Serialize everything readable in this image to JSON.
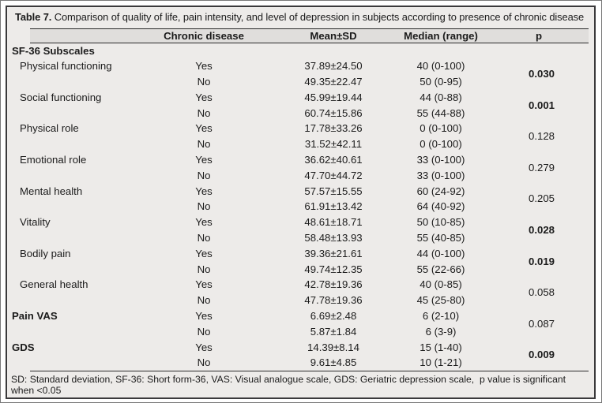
{
  "table": {
    "number_label": "Table 7.",
    "caption": "Comparison of quality of life, pain intensity, and level of depression in subjects according to presence of chronic disease",
    "columns": {
      "group": "Chronic disease",
      "mean": "Mean±SD",
      "median": "Median (range)",
      "p": "p"
    },
    "section_header": "SF-36 Subscales",
    "yes_label": "Yes",
    "no_label": "No",
    "groups": [
      {
        "label": "Physical functioning",
        "indented": true,
        "label_bold": false,
        "yes": {
          "mean": "37.89±24.50",
          "median": "40 (0-100)"
        },
        "no": {
          "mean": "49.35±22.47",
          "median": "50 (0-95)"
        },
        "p": "0.030",
        "p_bold": true
      },
      {
        "label": "Social functioning",
        "indented": true,
        "label_bold": false,
        "yes": {
          "mean": "45.99±19.44",
          "median": "44 (0-88)"
        },
        "no": {
          "mean": "60.74±15.86",
          "median": "55 (44-88)"
        },
        "p": "0.001",
        "p_bold": true
      },
      {
        "label": "Physical role",
        "indented": true,
        "label_bold": false,
        "yes": {
          "mean": "17.78±33.26",
          "median": "0 (0-100)"
        },
        "no": {
          "mean": "31.52±42.11",
          "median": "0 (0-100)"
        },
        "p": "0.128",
        "p_bold": false
      },
      {
        "label": "Emotional role",
        "indented": true,
        "label_bold": false,
        "yes": {
          "mean": "36.62±40.61",
          "median": "33 (0-100)"
        },
        "no": {
          "mean": "47.70±44.72",
          "median": "33 (0-100)"
        },
        "p": "0.279",
        "p_bold": false
      },
      {
        "label": "Mental health",
        "indented": true,
        "label_bold": false,
        "yes": {
          "mean": "57.57±15.55",
          "median": "60 (24-92)"
        },
        "no": {
          "mean": "61.91±13.42",
          "median": "64 (40-92)"
        },
        "p": "0.205",
        "p_bold": false
      },
      {
        "label": "Vitality",
        "indented": true,
        "label_bold": false,
        "yes": {
          "mean": "48.61±18.71",
          "median": "50 (10-85)"
        },
        "no": {
          "mean": "58.48±13.93",
          "median": "55 (40-85)"
        },
        "p": "0.028",
        "p_bold": true
      },
      {
        "label": "Bodily pain",
        "indented": true,
        "label_bold": false,
        "yes": {
          "mean": "39.36±21.61",
          "median": "44 (0-100)"
        },
        "no": {
          "mean": "49.74±12.35",
          "median": "55 (22-66)"
        },
        "p": "0.019",
        "p_bold": true
      },
      {
        "label": "General health",
        "indented": true,
        "label_bold": false,
        "yes": {
          "mean": "42.78±19.36",
          "median": "40 (0-85)"
        },
        "no": {
          "mean": "47.78±19.36",
          "median": "45 (25-80)"
        },
        "p": "0.058",
        "p_bold": false
      },
      {
        "label": "Pain VAS",
        "indented": false,
        "label_bold": true,
        "yes": {
          "mean": "6.69±2.48",
          "median": "6 (2-10)"
        },
        "no": {
          "mean": "5.87±1.84",
          "median": "6 (3-9)"
        },
        "p": "0.087",
        "p_bold": false
      },
      {
        "label": "GDS",
        "indented": false,
        "label_bold": true,
        "yes": {
          "mean": "14.39±8.14",
          "median": "15 (1-40)"
        },
        "no": {
          "mean": "9.61±4.85",
          "median": "10 (1-21)"
        },
        "p": "0.009",
        "p_bold": true
      }
    ],
    "footnote": "SD: Standard deviation, SF-36: Short form-36, VAS: Visual analogue scale, GDS: Geriatric depression scale,  p value is significant when <0.05",
    "colors": {
      "frame_border": "#3a393b",
      "table_background": "#edebe9",
      "header_band_background": "#e0dedc",
      "text": "#1b1b1b"
    }
  }
}
